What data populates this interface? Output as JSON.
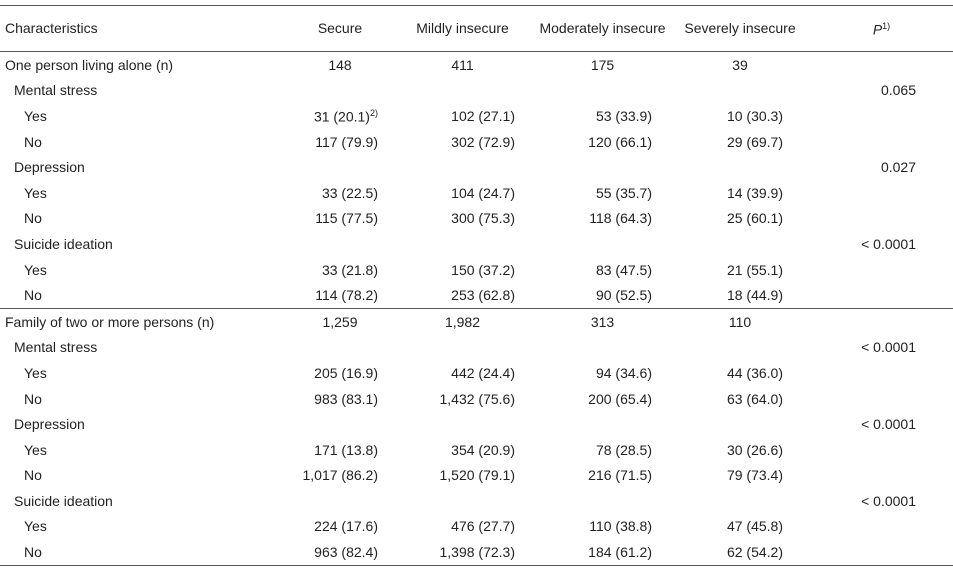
{
  "header": [
    "Characteristics",
    "Secure",
    "Mildly insecure",
    "Moderately insecure",
    "Severely insecure",
    {
      "text": "P",
      "sup": "1)"
    }
  ],
  "groups": [
    {
      "label": "One person living alone (n)",
      "values": [
        "148",
        "411",
        "175",
        "39"
      ],
      "items": [
        {
          "label": "Mental stress",
          "p": "0.065",
          "rows": [
            {
              "label": "Yes",
              "values": [
                {
                  "text": "31 (20.1)",
                  "sup": "2)"
                },
                "102 (27.1)",
                "53 (33.9)",
                "10 (30.3)"
              ]
            },
            {
              "label": "No",
              "values": [
                "117 (79.9)",
                "302 (72.9)",
                "120 (66.1)",
                "29 (69.7)"
              ]
            }
          ]
        },
        {
          "label": "Depression",
          "p": "0.027",
          "rows": [
            {
              "label": "Yes",
              "values": [
                "33 (22.5)",
                "104 (24.7)",
                "55 (35.7)",
                "14 (39.9)"
              ]
            },
            {
              "label": "No",
              "values": [
                "115 (77.5)",
                "300 (75.3)",
                "118 (64.3)",
                "25 (60.1)"
              ]
            }
          ]
        },
        {
          "label": "Suicide ideation",
          "p": "< 0.0001",
          "rows": [
            {
              "label": "Yes",
              "values": [
                "33 (21.8)",
                "150 (37.2)",
                "83 (47.5)",
                "21 (55.1)"
              ]
            },
            {
              "label": "No",
              "values": [
                "114 (78.2)",
                "253 (62.8)",
                "90 (52.5)",
                "18 (44.9)"
              ]
            }
          ]
        }
      ]
    },
    {
      "label": "Family of two or more persons (n)",
      "values": [
        "1,259",
        "1,982",
        "313",
        "110"
      ],
      "items": [
        {
          "label": "Mental stress",
          "p": "< 0.0001",
          "rows": [
            {
              "label": "Yes",
              "values": [
                "205 (16.9)",
                "442 (24.4)",
                "94 (34.6)",
                "44 (36.0)"
              ]
            },
            {
              "label": "No",
              "values": [
                "983 (83.1)",
                "1,432 (75.6)",
                "200 (65.4)",
                "63 (64.0)"
              ]
            }
          ]
        },
        {
          "label": "Depression",
          "p": "< 0.0001",
          "rows": [
            {
              "label": "Yes",
              "values": [
                "171 (13.8)",
                "354 (20.9)",
                "78 (28.5)",
                "30 (26.6)"
              ]
            },
            {
              "label": "No",
              "values": [
                "1,017 (86.2)",
                "1,520 (79.1)",
                "216 (71.5)",
                "79 (73.4)"
              ]
            }
          ]
        },
        {
          "label": "Suicide ideation",
          "p": "< 0.0001",
          "rows": [
            {
              "label": "Yes",
              "values": [
                "224 (17.6)",
                "476 (27.7)",
                "110 (38.8)",
                "47 (45.8)"
              ]
            },
            {
              "label": "No",
              "values": [
                "963 (82.4)",
                "1,398 (72.3)",
                "184 (61.2)",
                "62 (54.2)"
              ]
            }
          ]
        }
      ]
    }
  ]
}
